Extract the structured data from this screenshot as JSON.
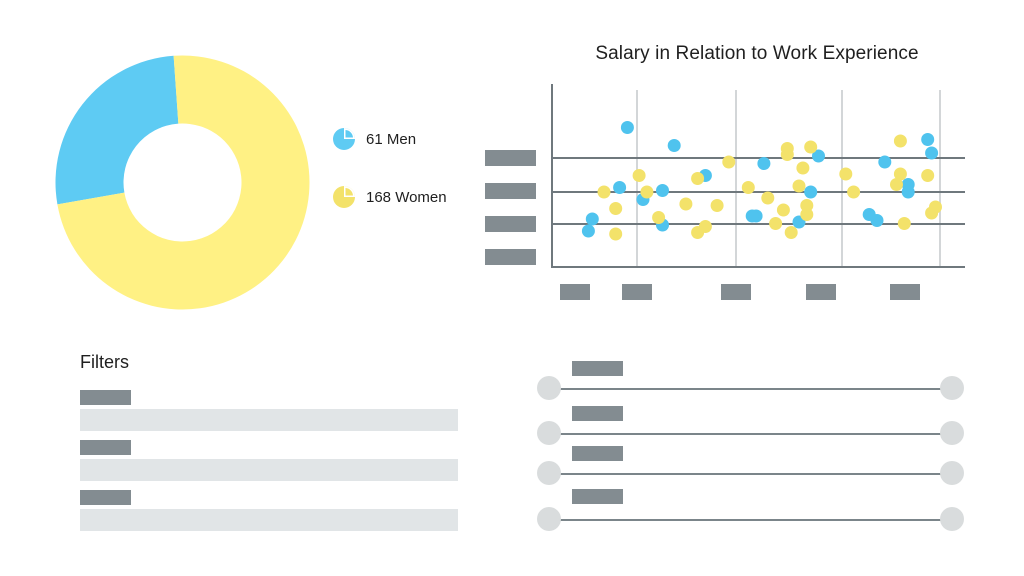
{
  "donut": {
    "men": 61,
    "women": 168,
    "men_color": "#5ecbf3",
    "women_color": "#fff184",
    "legend": [
      {
        "label": "61 Men",
        "icon": "pie-icon",
        "color": "#5ecbf3"
      },
      {
        "label": "168 Women",
        "icon": "pie-icon",
        "color": "#f3e26a"
      }
    ]
  },
  "scatter": {
    "title": "Salary in Relation to Work Experience",
    "colors": {
      "men": "#4fc3ee",
      "women": "#f3e26a",
      "axis": "#6f787d",
      "grid": "#d3d6d8",
      "placeholder": "#838c91"
    },
    "placeholder_ticks_y": 4,
    "placeholder_ticks_x": 5
  },
  "chart_data": {
    "type": "scatter",
    "title": "Salary in Relation to Work Experience",
    "xlabel": "",
    "ylabel": "",
    "xlim": [
      0,
      100
    ],
    "ylim": [
      0,
      100
    ],
    "grid": true,
    "series": [
      {
        "name": "Men",
        "color": "#4fc3ee",
        "points": [
          [
            16,
            87
          ],
          [
            28,
            75
          ],
          [
            20,
            39
          ],
          [
            14,
            47
          ],
          [
            25,
            45
          ],
          [
            6,
            18
          ],
          [
            7,
            26
          ],
          [
            25,
            22
          ],
          [
            36,
            55
          ],
          [
            51,
            63
          ],
          [
            49,
            28
          ],
          [
            48,
            28
          ],
          [
            65,
            68
          ],
          [
            63,
            44
          ],
          [
            60,
            24
          ],
          [
            82,
            64
          ],
          [
            88,
            49
          ],
          [
            88,
            44
          ],
          [
            93,
            79
          ],
          [
            80,
            25
          ],
          [
            78,
            29
          ],
          [
            94,
            70
          ]
        ]
      },
      {
        "name": "Women",
        "color": "#f3e26a",
        "points": [
          [
            10,
            44
          ],
          [
            13,
            33
          ],
          [
            13,
            16
          ],
          [
            19,
            55
          ],
          [
            21,
            44
          ],
          [
            24,
            27
          ],
          [
            31,
            36
          ],
          [
            34,
            53
          ],
          [
            34,
            17
          ],
          [
            36,
            21
          ],
          [
            39,
            35
          ],
          [
            42,
            64
          ],
          [
            47,
            47
          ],
          [
            52,
            40
          ],
          [
            57,
            73
          ],
          [
            57,
            69
          ],
          [
            54,
            23
          ],
          [
            56,
            32
          ],
          [
            58,
            17
          ],
          [
            60,
            48
          ],
          [
            61,
            60
          ],
          [
            62,
            35
          ],
          [
            63,
            74
          ],
          [
            62,
            29
          ],
          [
            72,
            56
          ],
          [
            74,
            44
          ],
          [
            86,
            78
          ],
          [
            85,
            49
          ],
          [
            86,
            56
          ],
          [
            87,
            23
          ],
          [
            93,
            55
          ],
          [
            95,
            34
          ],
          [
            94,
            30
          ]
        ]
      }
    ]
  },
  "filters": {
    "title": "Filters",
    "count": 3
  },
  "sliders": {
    "count": 4
  }
}
